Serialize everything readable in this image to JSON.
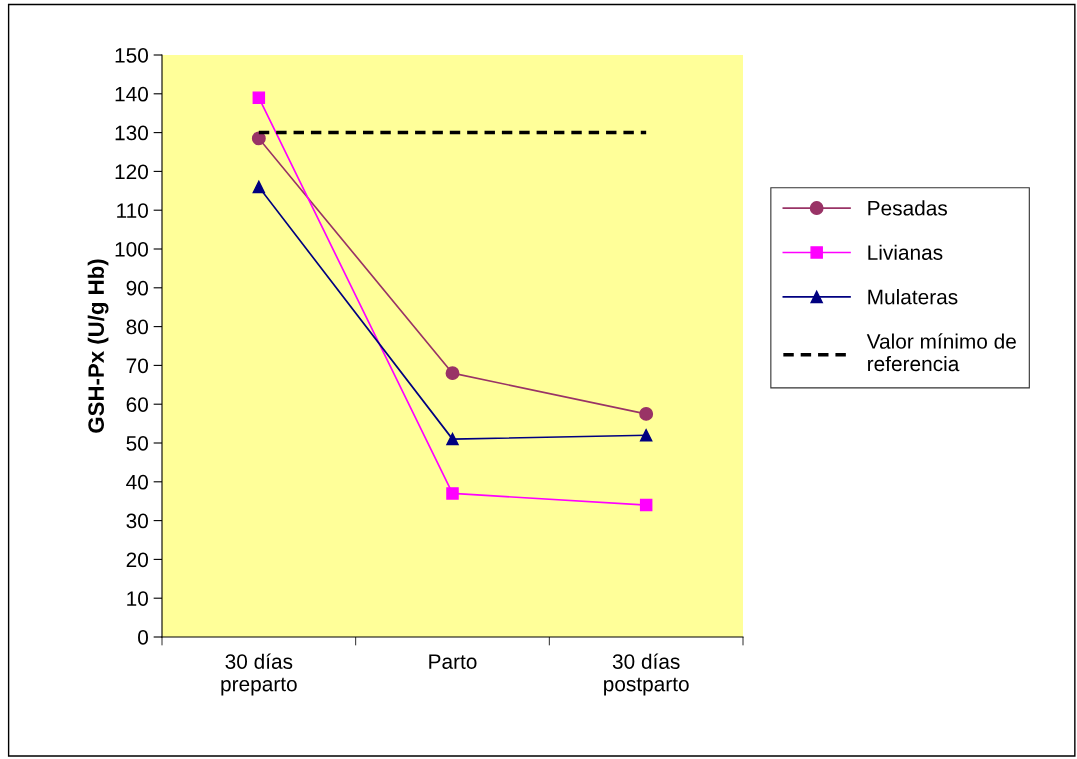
{
  "chart_data": {
    "type": "line",
    "ylabel": "GSH-Px (U/g Hb)",
    "categories": [
      "30 días\npreparto",
      "Parto",
      "30 días\npostparto"
    ],
    "series": [
      {
        "name": "Pesadas",
        "color": "#993366",
        "marker": "circle",
        "values": [
          128.5,
          68,
          57.5
        ]
      },
      {
        "name": "Livianas",
        "color": "#ff00ff",
        "marker": "square",
        "values": [
          139,
          37,
          34
        ]
      },
      {
        "name": "Mulateras",
        "color": "#000080",
        "marker": "triangle",
        "values": [
          116,
          51,
          52
        ]
      },
      {
        "name": "Valor mínimo de\nreferencia",
        "color": "#000000",
        "marker": "none",
        "line_style": "dashed",
        "values": [
          130,
          130,
          130
        ]
      }
    ],
    "ylim": [
      0,
      150
    ],
    "yticks": [
      0,
      10,
      20,
      30,
      40,
      50,
      60,
      70,
      80,
      90,
      100,
      110,
      120,
      130,
      140,
      150
    ],
    "grid": false,
    "legend": "right"
  }
}
